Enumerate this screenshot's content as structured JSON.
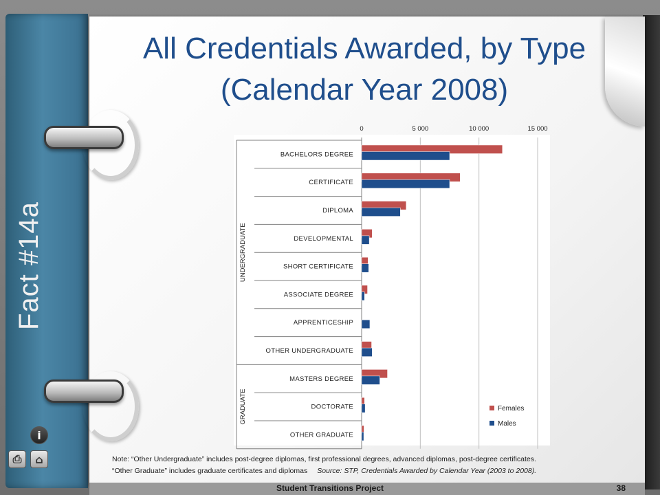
{
  "spine_label": "Fact #14a",
  "title_line1": "All Credentials Awarded, by Type",
  "title_line2": "(Calendar Year 2008)",
  "footer": "Student Transitions Project",
  "page_number": "38",
  "note_line1": "Note:  “Other Undergraduate” includes post-degree diplomas, first professional degrees, advanced diplomas, post-degree certificates.",
  "note_line2": "“Other Graduate” includes graduate certificates and diplomas",
  "source": "Source:  STP, Credentials Awarded by Calendar Year (2003 to 2008).",
  "nav_icons": [
    "info-icon",
    "print-icon",
    "home-icon"
  ],
  "chart_data": {
    "type": "bar",
    "orientation": "horizontal",
    "categories": [
      "BACHELORS DEGREE",
      "CERTIFICATE",
      "DIPLOMA",
      "DEVELOPMENTAL",
      "SHORT CERTIFICATE",
      "ASSOCIATE DEGREE",
      "APPRENTICESHIP",
      "OTHER UNDERGRADUATE",
      "MASTERS DEGREE",
      "DOCTORATE",
      "OTHER GRADUATE"
    ],
    "groups": [
      {
        "label": "UNDERGRADUATE",
        "categories": 8
      },
      {
        "label": "GRADUATE",
        "categories": 3
      }
    ],
    "series": [
      {
        "name": "Females",
        "color": "#c0504d",
        "values": [
          12000,
          8400,
          3800,
          900,
          550,
          500,
          0,
          850,
          2200,
          250,
          200
        ]
      },
      {
        "name": "Males",
        "color": "#1f4e8c",
        "values": [
          7500,
          7500,
          3300,
          650,
          600,
          250,
          700,
          900,
          1550,
          300,
          180
        ]
      }
    ],
    "xlim": [
      0,
      15000
    ],
    "xticks": [
      0,
      5000,
      10000,
      15000
    ],
    "xtick_labels": [
      "0",
      "5 000",
      "10 000",
      "15 000"
    ],
    "legend": "bottom-right",
    "grid": true
  }
}
